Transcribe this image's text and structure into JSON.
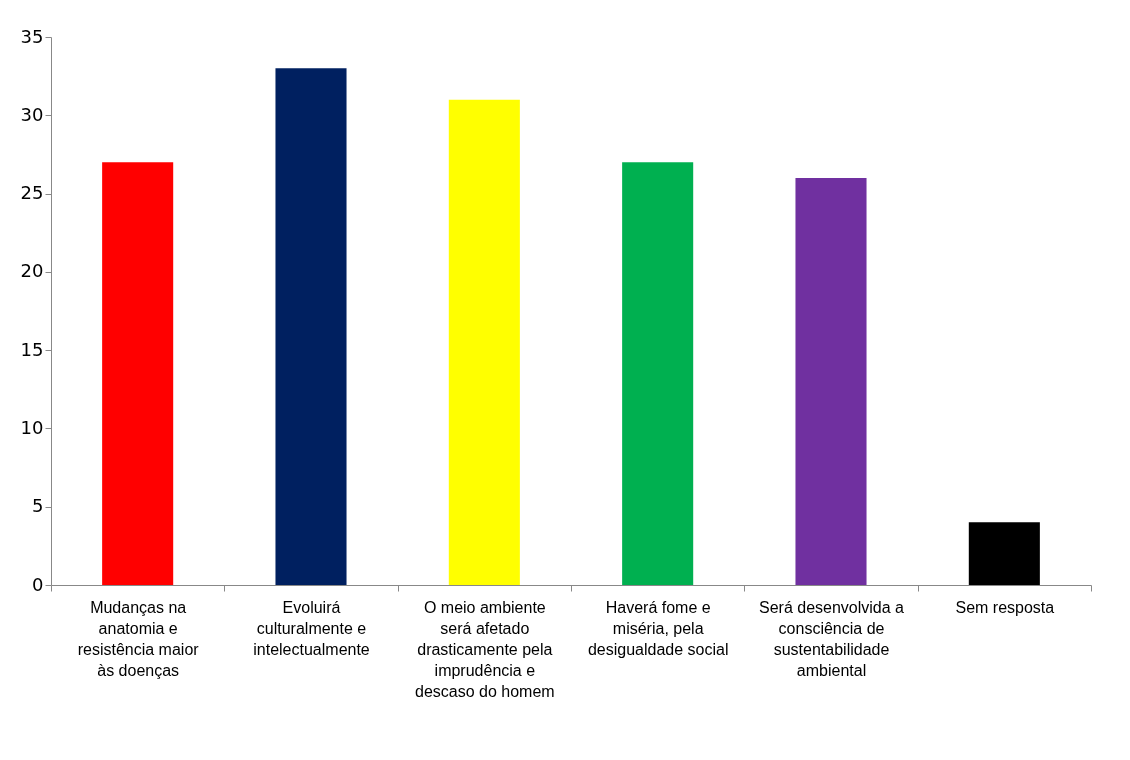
{
  "chart_data": {
    "type": "bar",
    "categories": [
      "Mudanças na anatomia e resistência maior às doenças",
      "Evoluirá culturalmente e intelectualmente",
      "O meio ambiente será afetado drasticamente pela imprudência e descaso do homem",
      "Haverá fome e miséria, pela desigualdade social",
      "Será desenvolvida a consciência de sustentabilidade ambiental",
      "Sem resposta"
    ],
    "values": [
      27,
      33,
      31,
      27,
      26,
      4
    ],
    "colors": [
      "#ff0000",
      "#002060",
      "#ffff00",
      "#00b050",
      "#7030a0",
      "#000000"
    ],
    "ylim": [
      0,
      35
    ],
    "yticks": [
      0,
      5,
      10,
      15,
      20,
      25,
      30,
      35
    ],
    "grid": false,
    "legend": false
  }
}
